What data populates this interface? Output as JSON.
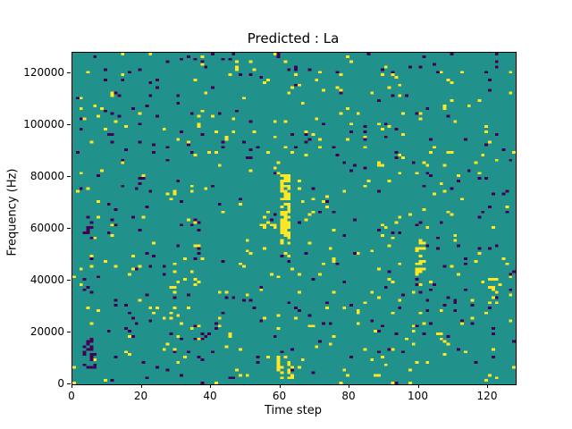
{
  "figure": {
    "title": "Predicted : La",
    "xlabel": "Time step",
    "ylabel": "Frequency (Hz)"
  },
  "chart_data": {
    "type": "heatmap",
    "title": "Predicted : La",
    "xlabel": "Time step",
    "ylabel": "Frequency (Hz)",
    "x_range": [
      0,
      128
    ],
    "y_range": [
      0,
      128000
    ],
    "x_ticks": [
      0,
      20,
      40,
      60,
      80,
      100,
      120
    ],
    "y_ticks": [
      0,
      20000,
      40000,
      60000,
      80000,
      100000,
      120000
    ],
    "grid": {
      "cols": 128,
      "rows": 128
    },
    "colormap": "viridis",
    "colors": {
      "background": "#21918c",
      "high": "#fde725",
      "low": "#440154"
    },
    "sparse": {
      "seed": 7,
      "high_density": 0.022,
      "low_density": 0.02
    },
    "features": [
      {
        "x1": 60,
        "x2": 62,
        "y1": 54,
        "y2": 80,
        "color": "high",
        "fill": 0.75
      },
      {
        "x1": 59,
        "x2": 63,
        "y1": 2,
        "y2": 10,
        "color": "high",
        "fill": 0.35
      },
      {
        "x1": 99,
        "x2": 101,
        "y1": 42,
        "y2": 56,
        "color": "high",
        "fill": 0.4
      },
      {
        "x1": 120,
        "x2": 123,
        "y1": 30,
        "y2": 40,
        "color": "high",
        "fill": 0.3
      },
      {
        "x1": 3,
        "x2": 6,
        "y1": 6,
        "y2": 16,
        "color": "low",
        "fill": 0.35
      },
      {
        "x1": 4,
        "x2": 5,
        "y1": 58,
        "y2": 64,
        "color": "low",
        "fill": 0.5
      },
      {
        "x1": 55,
        "x2": 58,
        "y1": 60,
        "y2": 66,
        "color": "high",
        "fill": 0.3
      }
    ]
  }
}
